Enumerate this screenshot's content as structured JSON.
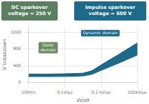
{
  "chart_data": {
    "type": "area",
    "x": [
      0.0,
      1.0,
      2.0,
      3.0,
      3.5,
      4.0,
      5.0,
      6.0
    ],
    "series": [
      {
        "color": "#0d4a6a",
        "values": [
          200,
          200,
          205,
          220,
          280,
          420,
          680,
          950
        ]
      },
      {
        "color": "#0d4a6a",
        "values": [
          140,
          140,
          142,
          155,
          195,
          290,
          470,
          660
        ]
      }
    ],
    "color": "#1e6a8a",
    "xlabel": "dV/dt",
    "ylabel": "V breakdown",
    "xlim": [
      0,
      6
    ],
    "ylim": [
      0,
      1350
    ],
    "xticks": [
      {
        "value": 0,
        "label": "100V/s"
      },
      {
        "value": 2,
        "label": "0.1V/μs"
      },
      {
        "value": 4,
        "label": "0.1 kV/μs"
      },
      {
        "value": 6,
        "label": "100kV/μs"
      }
    ],
    "yticks": [
      0,
      400,
      800,
      1200
    ],
    "grid": true,
    "annotations": [
      {
        "text": "DC sparkover\nvoltage = 250 V",
        "color": "#5a8060"
      },
      {
        "text": "Impulse sparkover\nvoltage = 600 V",
        "color": "#1e6a8a"
      },
      {
        "text": "Static\ndomain",
        "color": "#6a8a60"
      },
      {
        "text": "Dynamic domain",
        "color": "#1e6a8a"
      }
    ]
  }
}
